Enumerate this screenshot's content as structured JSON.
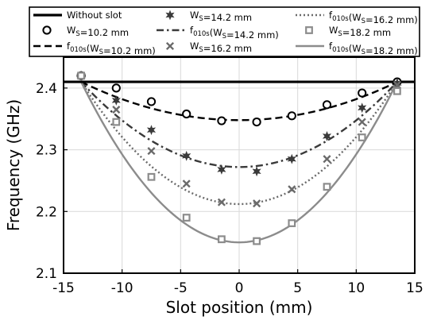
{
  "chart_data": {
    "type": "line",
    "title": "",
    "xlabel": "Slot position (mm)",
    "ylabel": "Frequency (GHz)",
    "xlim": [
      -15,
      15
    ],
    "ylim": [
      2.1,
      2.45
    ],
    "xticks": [
      -15,
      -10,
      -5,
      0,
      5,
      10,
      15
    ],
    "xtick_labels": [
      "-15",
      "-10",
      "-5",
      "0",
      "5",
      "10",
      "15"
    ],
    "yticks": [
      2.1,
      2.2,
      2.3,
      2.4
    ],
    "ytick_labels": [
      "2.1",
      "2.2",
      "2.3",
      "2.4"
    ],
    "grid": true,
    "legend_position": "top",
    "reference_line": {
      "name": "Without slot",
      "y": 2.41
    },
    "x": [
      -13.5,
      -10.5,
      -7.5,
      -4.5,
      -1.5,
      1.5,
      4.5,
      7.5,
      10.5,
      13.5
    ],
    "measured_series": [
      {
        "name": "Ws=10.2 mm",
        "marker": "circle",
        "values": [
          2.42,
          2.4,
          2.378,
          2.358,
          2.347,
          2.345,
          2.355,
          2.373,
          2.392,
          2.41
        ]
      },
      {
        "name": "Ws=14.2 mm",
        "marker": "star",
        "values": [
          2.42,
          2.38,
          2.332,
          2.29,
          2.268,
          2.265,
          2.285,
          2.322,
          2.368,
          2.408
        ]
      },
      {
        "name": "Ws=16.2 mm",
        "marker": "x",
        "values": [
          2.42,
          2.365,
          2.298,
          2.245,
          2.215,
          2.213,
          2.236,
          2.285,
          2.345,
          2.405
        ]
      },
      {
        "name": "Ws=18.2 mm",
        "marker": "square",
        "values": [
          2.42,
          2.345,
          2.256,
          2.19,
          2.155,
          2.152,
          2.181,
          2.24,
          2.32,
          2.395
        ]
      }
    ],
    "model_series": [
      {
        "name": "f010s(Ws=10.2 mm)",
        "style": "dashed",
        "edge": 2.41,
        "min": 2.348
      },
      {
        "name": "f010s(Ws=14.2 mm)",
        "style": "dashdot",
        "edge": 2.41,
        "min": 2.272
      },
      {
        "name": "f010s(Ws=16.2 mm)",
        "style": "dotted",
        "edge": 2.41,
        "min": 2.212
      },
      {
        "name": "f010s(Ws=18.2 mm)",
        "style": "solid",
        "edge": 2.41,
        "min": 2.15
      }
    ],
    "model_x_range": [
      -13.5,
      13.5
    ],
    "legend": [
      {
        "key": "ref",
        "main": "Without slot",
        "sub": "",
        "after": ""
      },
      {
        "key": "s1",
        "main": "W",
        "sub": "S",
        "after": "=14.2 mm"
      },
      {
        "key": "m3",
        "main": "f",
        "sub": "010s",
        "after": "(W",
        "sub2": "S",
        "after2": "=16.2 mm)"
      },
      {
        "key": "s0",
        "main": "W",
        "sub": "S",
        "after": "=10.2 mm"
      },
      {
        "key": "m1",
        "main": "f",
        "sub": "010s",
        "after": "(W",
        "sub2": "S",
        "after2": "=14.2 mm)"
      },
      {
        "key": "s3",
        "main": "W",
        "sub": "S",
        "after": "=18.2 mm"
      },
      {
        "key": "m0",
        "main": "f",
        "sub": "010s",
        "after": "(W",
        "sub2": "S",
        "after2": "=10.2 mm)"
      },
      {
        "key": "s2",
        "main": "W",
        "sub": "S",
        "after": "=16.2 mm"
      },
      {
        "key": "m4",
        "main": "f",
        "sub": "010s",
        "after": "(W",
        "sub2": "S",
        "after2": "=18.2 mm)"
      }
    ],
    "colors": {
      "reference": "#000000",
      "s0": "#000000",
      "s1": "#3a3a3a",
      "s2": "#6a6a6a",
      "s3": "#8c8c8c",
      "grid": "#d9d9d9"
    }
  }
}
